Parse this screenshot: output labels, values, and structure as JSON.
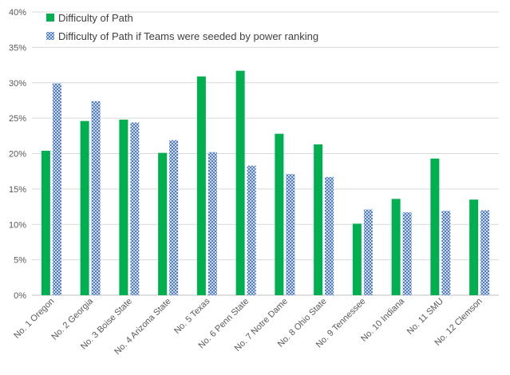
{
  "chart_data": {
    "type": "bar",
    "categories": [
      "No. 1 Oregon",
      "No. 2 Georgia",
      "No. 3 Boise State",
      "No. 4 Arizona State",
      "No. 5 Texas",
      "No. 6 Penn State",
      "No. 7 Notre Dame",
      "No. 8 Ohio State",
      "No. 9 Tennessee",
      "No. 10 Indiana",
      "No. 11 SMU",
      "No. 12 Clemson"
    ],
    "series": [
      {
        "name": "Difficulty of Path",
        "values": [
          20.4,
          24.6,
          24.8,
          20.1,
          30.9,
          31.7,
          22.8,
          21.3,
          10.1,
          13.6,
          19.3,
          13.5
        ],
        "color": "#00B050",
        "pattern": "solid"
      },
      {
        "name": "Difficulty of Path if Teams were seeded by power ranking",
        "values": [
          29.9,
          27.4,
          24.4,
          21.9,
          20.2,
          18.3,
          17.1,
          16.7,
          12.1,
          11.7,
          11.9,
          12.0
        ],
        "color": "#4472C4",
        "pattern": "crosshatch"
      }
    ],
    "y_ticks": [
      "0%",
      "5%",
      "10%",
      "15%",
      "20%",
      "25%",
      "30%",
      "35%",
      "40%"
    ],
    "ylim": [
      0,
      40
    ],
    "y_unit": "percent",
    "grid": true,
    "legend_position": "top-left"
  }
}
